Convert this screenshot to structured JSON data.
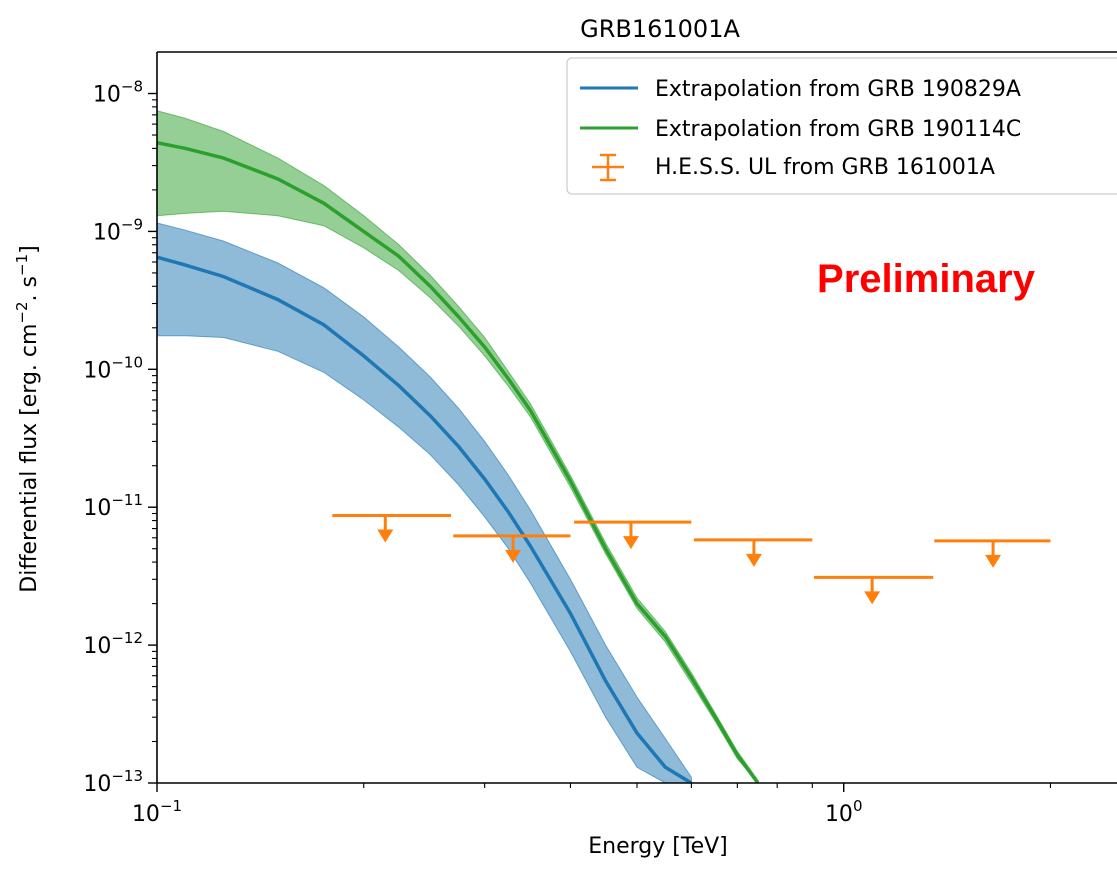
{
  "chart_data": {
    "type": "line",
    "title": "GRB161001A",
    "xlabel": "Energy [TeV]",
    "ylabel_parts": {
      "pre": "Differential flux [erg. cm",
      "exp1": "−2",
      "mid": ". s",
      "exp2": "−1",
      "post": "]"
    },
    "xscale": "log",
    "yscale": "log",
    "xlim": [
      0.1,
      2.5
    ],
    "ylim": [
      1e-13,
      2e-08
    ],
    "grid": false,
    "legend_position": "top-right",
    "x_ticks": [
      {
        "value": 0.1,
        "base": "10",
        "exp": "−1"
      },
      {
        "value": 1,
        "base": "10",
        "exp": "0"
      }
    ],
    "x_minor_ticks": [
      0.2,
      0.3,
      0.4,
      0.5,
      0.6,
      0.7,
      0.8,
      0.9,
      2
    ],
    "y_ticks": [
      {
        "value": 1e-13,
        "base": "10",
        "exp": "−13"
      },
      {
        "value": 1e-12,
        "base": "10",
        "exp": "−12"
      },
      {
        "value": 1e-11,
        "base": "10",
        "exp": "−11"
      },
      {
        "value": 1e-10,
        "base": "10",
        "exp": "−10"
      },
      {
        "value": 1e-09,
        "base": "10",
        "exp": "−9"
      },
      {
        "value": 1e-08,
        "base": "10",
        "exp": "−8"
      }
    ],
    "series": [
      {
        "name": "Extrapolation from GRB 190829A",
        "color": "#1f77b4",
        "band_color": "#1f77b4",
        "x": [
          0.1,
          0.11,
          0.125,
          0.15,
          0.175,
          0.2,
          0.225,
          0.25,
          0.275,
          0.3,
          0.325,
          0.35,
          0.4,
          0.45,
          0.5,
          0.55,
          0.6
        ],
        "y": [
          6.5e-10,
          5.7e-10,
          4.7e-10,
          3.2e-10,
          2.1e-10,
          1.25e-10,
          7.6e-11,
          4.6e-11,
          2.75e-11,
          1.6e-11,
          9.2e-12,
          5.2e-12,
          1.7e-12,
          5.5e-13,
          2.3e-13,
          1.3e-13,
          1e-13
        ],
        "y_upper": [
          1.15e-09,
          1.02e-09,
          8.5e-10,
          5.9e-10,
          3.9e-10,
          2.4e-10,
          1.45e-10,
          8.8e-11,
          5.2e-11,
          3e-11,
          1.7e-11,
          9.5e-12,
          3e-12,
          1e-12,
          4.2e-13,
          2.1e-13,
          1.1e-13
        ],
        "y_lower": [
          1.75e-10,
          1.75e-10,
          1.7e-10,
          1.35e-10,
          9.5e-11,
          6e-11,
          3.8e-11,
          2.4e-11,
          1.45e-11,
          8.5e-12,
          5e-12,
          2.8e-12,
          9e-13,
          3e-13,
          1.3e-13,
          1e-13,
          1e-13
        ]
      },
      {
        "name": "Extrapolation from GRB 190114C",
        "color": "#2ca02c",
        "band_color": "#2ca02c",
        "x": [
          0.1,
          0.11,
          0.125,
          0.15,
          0.175,
          0.2,
          0.225,
          0.25,
          0.275,
          0.3,
          0.325,
          0.35,
          0.4,
          0.45,
          0.5,
          0.55,
          0.6,
          0.65,
          0.7,
          0.75
        ],
        "y": [
          4.4e-09,
          4e-09,
          3.4e-09,
          2.4e-09,
          1.6e-09,
          1e-09,
          6.6e-10,
          4e-10,
          2.4e-10,
          1.45e-10,
          8.5e-11,
          5e-11,
          1.55e-11,
          5e-12,
          2e-12,
          1.15e-12,
          5.8e-13,
          3e-13,
          1.6e-13,
          1e-13
        ],
        "y_upper": [
          7.5e-09,
          6.6e-09,
          5.3e-09,
          3.4e-09,
          2.15e-09,
          1.3e-09,
          8e-10,
          4.8e-10,
          2.85e-10,
          1.7e-10,
          9.6e-11,
          5.6e-11,
          1.7e-11,
          5.5e-12,
          2.2e-12,
          1.25e-12,
          6.3e-13,
          3.2e-13,
          1.7e-13,
          1.05e-13
        ],
        "y_lower": [
          1.3e-09,
          1.35e-09,
          1.4e-09,
          1.3e-09,
          1.1e-09,
          7.6e-10,
          5.2e-10,
          3.3e-10,
          2.05e-10,
          1.25e-10,
          7.5e-11,
          4.5e-11,
          1.4e-11,
          4.6e-12,
          1.85e-12,
          1.05e-12,
          5.3e-13,
          2.8e-13,
          1.5e-13,
          1e-13
        ]
      }
    ],
    "upper_limits": {
      "name": "H.E.S.S. UL from GRB 161001A",
      "color": "#ff7f0e",
      "points": [
        {
          "x": 0.215,
          "xmin": 0.18,
          "xmax": 0.268,
          "y": 8.7e-12
        },
        {
          "x": 0.33,
          "xmin": 0.27,
          "xmax": 0.4,
          "y": 6.2e-12
        },
        {
          "x": 0.49,
          "xmin": 0.405,
          "xmax": 0.6,
          "y": 7.8e-12
        },
        {
          "x": 0.74,
          "xmin": 0.605,
          "xmax": 0.9,
          "y": 5.8e-12
        },
        {
          "x": 1.1,
          "xmin": 0.905,
          "xmax": 1.35,
          "y": 3.1e-12
        },
        {
          "x": 1.65,
          "xmin": 1.355,
          "xmax": 2.0,
          "y": 5.7e-12
        }
      ]
    },
    "annotation": {
      "text": "Preliminary",
      "color": "#ff0000"
    }
  }
}
